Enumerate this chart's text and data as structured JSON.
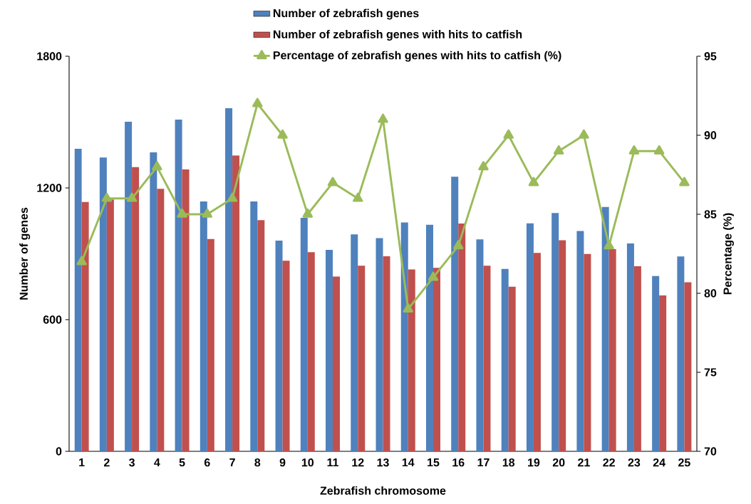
{
  "chart_data": {
    "type": "bar",
    "xlabel": "Zebrafish chromosome",
    "ylabel": "Number of genes",
    "y2label": "Percentage (%)",
    "categories": [
      "1",
      "2",
      "3",
      "4",
      "5",
      "6",
      "7",
      "8",
      "9",
      "10",
      "11",
      "12",
      "13",
      "14",
      "15",
      "16",
      "17",
      "18",
      "19",
      "20",
      "21",
      "22",
      "23",
      "24",
      "25"
    ],
    "series": [
      {
        "name": "Number of zebrafish genes",
        "color": "#4f81bd",
        "values": [
          1378,
          1339,
          1502,
          1362,
          1511,
          1138,
          1563,
          1138,
          960,
          1064,
          918,
          988,
          971,
          1043,
          1032,
          1251,
          966,
          831,
          1039,
          1086,
          1004,
          1113,
          947,
          799,
          888
        ]
      },
      {
        "name": "Number of zebrafish genes with hits to catfish",
        "color": "#c0504d",
        "values": [
          1136,
          1147,
          1295,
          1196,
          1284,
          967,
          1348,
          1053,
          868,
          907,
          796,
          846,
          889,
          829,
          836,
          1038,
          846,
          750,
          904,
          962,
          899,
          921,
          843,
          710,
          770
        ]
      },
      {
        "name": "Percentage of zebrafish genes with hits to catfish (%)",
        "type": "line",
        "axis": "y2",
        "marker": "triangle",
        "color": "#9bbb59",
        "values": [
          82,
          86,
          86,
          88,
          85,
          85,
          86,
          92,
          90,
          85,
          87,
          86,
          91,
          79,
          81,
          83,
          88,
          90,
          87,
          89,
          90,
          83,
          89,
          89,
          87
        ]
      }
    ],
    "ylim": [
      0,
      1800
    ],
    "yticks": [
      0,
      600,
      1200,
      1800
    ],
    "y2lim": [
      70,
      95
    ],
    "y2ticks": [
      70,
      75,
      80,
      85,
      90,
      95
    ],
    "legend": "top",
    "grid": false
  }
}
